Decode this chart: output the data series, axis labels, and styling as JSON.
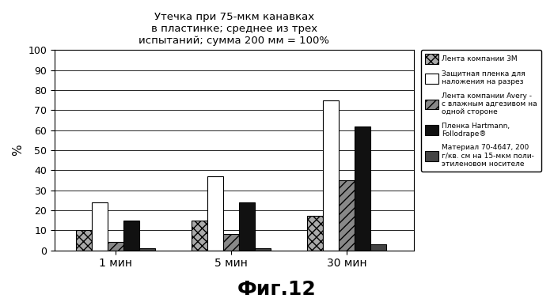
{
  "title": "Утечка при 75-мкм канавках\nв пластинке; среднее из трех\nиспытаний; сумма 200 мм = 100%",
  "xlabel_fig": "Фиг.12",
  "ylabel": "%",
  "groups": [
    "1 мин",
    "5 мин",
    "30 мин"
  ],
  "series": [
    {
      "label": "Лента компании 3М",
      "values": [
        10,
        15,
        17
      ],
      "color": "#aaaaaa",
      "hatch": "xxx",
      "edgecolor": "#000000"
    },
    {
      "label": "Защитная пленка для\nналожения на разрез",
      "values": [
        24,
        37,
        75
      ],
      "color": "#ffffff",
      "hatch": "",
      "edgecolor": "#000000"
    },
    {
      "label": "Лента компании Avery -\nс влажным адгезивом на\nодной стороне",
      "values": [
        4,
        8,
        35
      ],
      "color": "#888888",
      "hatch": "///",
      "edgecolor": "#000000"
    },
    {
      "label": "Пленка Hartmann,\nFollodrape®",
      "values": [
        15,
        24,
        62
      ],
      "color": "#111111",
      "hatch": "",
      "edgecolor": "#000000"
    },
    {
      "label": "Материал 70-4647, 200\nг/кв. см на 15-мкм поли-\nэтиленовом носителе",
      "values": [
        1,
        1,
        3
      ],
      "color": "#444444",
      "hatch": "",
      "edgecolor": "#000000"
    }
  ],
  "ylim": [
    0,
    100
  ],
  "yticks": [
    0,
    10,
    20,
    30,
    40,
    50,
    60,
    70,
    80,
    90,
    100
  ],
  "background_color": "#ffffff",
  "bar_width": 0.13,
  "group_centers": [
    0.4,
    1.35,
    2.3
  ]
}
